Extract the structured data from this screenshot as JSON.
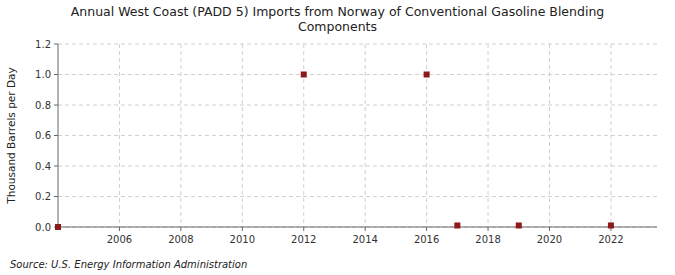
{
  "chart_data": {
    "type": "scatter",
    "title": "Annual West Coast (PADD 5) Imports from Norway of Conventional Gasoline Blending\nComponents",
    "ylabel": "Thousand Barrels per Day",
    "source": "Source: U.S. Energy Information Administration",
    "x": [
      2004,
      2012,
      2016,
      2017,
      2019,
      2022
    ],
    "values": [
      0.0,
      1.0,
      1.0,
      0.01,
      0.01,
      0.01
    ],
    "color": "#8b1a1a",
    "marker": "square",
    "xlim": [
      2004,
      2023.5
    ],
    "ylim": [
      0.0,
      1.2
    ],
    "xticks": [
      2006,
      2008,
      2010,
      2012,
      2014,
      2016,
      2018,
      2020,
      2022
    ],
    "yticks": [
      {
        "value": 0.0,
        "label": "0.0"
      },
      0.2,
      0.4,
      0.6,
      0.8,
      {
        "value": 1.0,
        "label": "1.0"
      },
      1.2
    ],
    "grid": true
  }
}
